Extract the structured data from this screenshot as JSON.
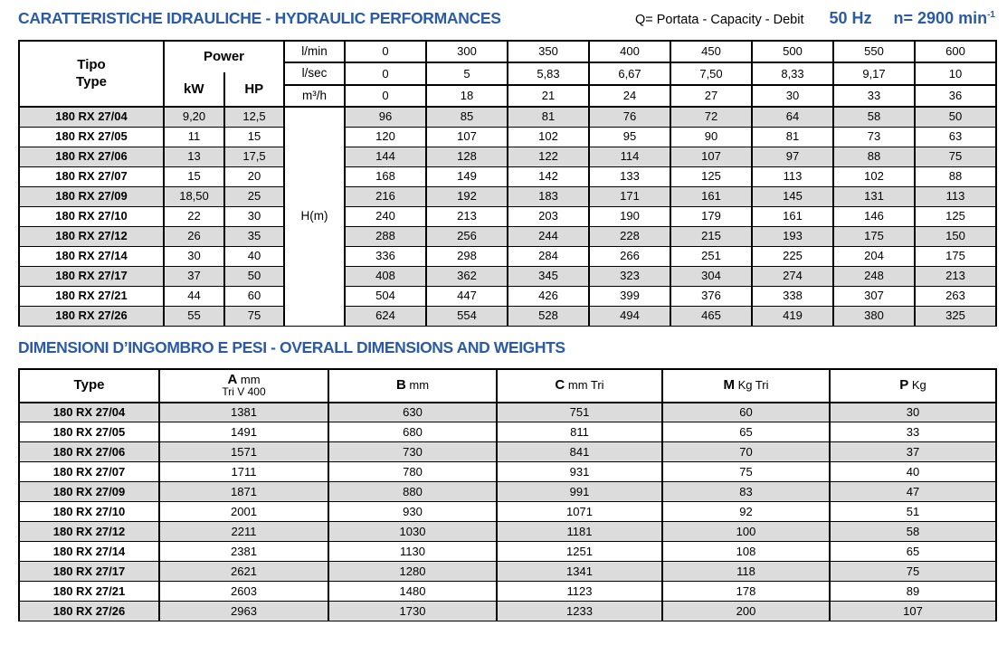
{
  "header": {
    "title": "CARATTERISTICHE IDRAULICHE - HYDRAULIC PERFORMANCES",
    "flow_legend": "Q= Portata - Capacity - Debit",
    "frequency": "50 Hz",
    "speed": "n= 2900 min",
    "speed_exponent": "-1"
  },
  "hydraulic": {
    "tipo_label": "Tipo",
    "type_label": "Type",
    "power_label": "Power",
    "kw_label": "kW",
    "hp_label": "HP",
    "head_unit": "H(m)",
    "flow_rows": [
      {
        "unit": "l/min",
        "values": [
          "0",
          "300",
          "350",
          "400",
          "450",
          "500",
          "550",
          "600"
        ]
      },
      {
        "unit": "l/sec",
        "values": [
          "0",
          "5",
          "5,83",
          "6,67",
          "7,50",
          "8,33",
          "9,17",
          "10"
        ]
      },
      {
        "unit": "m³/h",
        "values": [
          "0",
          "18",
          "21",
          "24",
          "27",
          "30",
          "33",
          "36"
        ]
      }
    ],
    "rows": [
      {
        "type": "180 RX 27/04",
        "kw": "9,20",
        "hp": "12,5",
        "h": [
          "96",
          "85",
          "81",
          "76",
          "72",
          "64",
          "58",
          "50"
        ]
      },
      {
        "type": "180 RX 27/05",
        "kw": "11",
        "hp": "15",
        "h": [
          "120",
          "107",
          "102",
          "95",
          "90",
          "81",
          "73",
          "63"
        ]
      },
      {
        "type": "180 RX 27/06",
        "kw": "13",
        "hp": "17,5",
        "h": [
          "144",
          "128",
          "122",
          "114",
          "107",
          "97",
          "88",
          "75"
        ]
      },
      {
        "type": "180 RX 27/07",
        "kw": "15",
        "hp": "20",
        "h": [
          "168",
          "149",
          "142",
          "133",
          "125",
          "113",
          "102",
          "88"
        ]
      },
      {
        "type": "180 RX 27/09",
        "kw": "18,50",
        "hp": "25",
        "h": [
          "216",
          "192",
          "183",
          "171",
          "161",
          "145",
          "131",
          "113"
        ]
      },
      {
        "type": "180 RX 27/10",
        "kw": "22",
        "hp": "30",
        "h": [
          "240",
          "213",
          "203",
          "190",
          "179",
          "161",
          "146",
          "125"
        ]
      },
      {
        "type": "180 RX 27/12",
        "kw": "26",
        "hp": "35",
        "h": [
          "288",
          "256",
          "244",
          "228",
          "215",
          "193",
          "175",
          "150"
        ]
      },
      {
        "type": "180 RX 27/14",
        "kw": "30",
        "hp": "40",
        "h": [
          "336",
          "298",
          "284",
          "266",
          "251",
          "225",
          "204",
          "175"
        ]
      },
      {
        "type": "180 RX 27/17",
        "kw": "37",
        "hp": "50",
        "h": [
          "408",
          "362",
          "345",
          "323",
          "304",
          "274",
          "248",
          "213"
        ]
      },
      {
        "type": "180 RX 27/21",
        "kw": "44",
        "hp": "60",
        "h": [
          "504",
          "447",
          "426",
          "399",
          "376",
          "338",
          "307",
          "263"
        ]
      },
      {
        "type": "180 RX 27/26",
        "kw": "55",
        "hp": "75",
        "h": [
          "624",
          "554",
          "528",
          "494",
          "465",
          "419",
          "380",
          "325"
        ]
      }
    ]
  },
  "dimensions": {
    "title": "DIMENSIONI D’INGOMBRO E PESI - OVERALL DIMENSIONS AND WEIGHTS",
    "columns": [
      {
        "bold": "Type",
        "rest": "",
        "line2": ""
      },
      {
        "bold": "A",
        "rest": " mm",
        "line2": "Tri V 400"
      },
      {
        "bold": "B",
        "rest": " mm",
        "line2": ""
      },
      {
        "bold": "C",
        "rest": " mm Tri",
        "line2": ""
      },
      {
        "bold": "M",
        "rest": " Kg Tri",
        "line2": ""
      },
      {
        "bold": "P",
        "rest": " Kg",
        "line2": ""
      }
    ],
    "rows": [
      {
        "type": "180 RX 27/04",
        "values": [
          "1381",
          "630",
          "751",
          "60",
          "30"
        ]
      },
      {
        "type": "180 RX 27/05",
        "values": [
          "1491",
          "680",
          "811",
          "65",
          "33"
        ]
      },
      {
        "type": "180 RX 27/06",
        "values": [
          "1571",
          "730",
          "841",
          "70",
          "37"
        ]
      },
      {
        "type": "180 RX 27/07",
        "values": [
          "1711",
          "780",
          "931",
          "75",
          "40"
        ]
      },
      {
        "type": "180 RX 27/09",
        "values": [
          "1871",
          "880",
          "991",
          "83",
          "47"
        ]
      },
      {
        "type": "180 RX 27/10",
        "values": [
          "2001",
          "930",
          "1071",
          "92",
          "51"
        ]
      },
      {
        "type": "180 RX 27/12",
        "values": [
          "2211",
          "1030",
          "1181",
          "100",
          "58"
        ]
      },
      {
        "type": "180 RX 27/14",
        "values": [
          "2381",
          "1130",
          "1251",
          "108",
          "65"
        ]
      },
      {
        "type": "180 RX 27/17",
        "values": [
          "2621",
          "1280",
          "1341",
          "118",
          "75"
        ]
      },
      {
        "type": "180 RX 27/21",
        "values": [
          "2603",
          "1480",
          "1123",
          "178",
          "89"
        ]
      },
      {
        "type": "180 RX 27/26",
        "values": [
          "2963",
          "1730",
          "1233",
          "200",
          "107"
        ]
      }
    ]
  },
  "colors": {
    "accent_blue": "#2b5aa6",
    "row_gray": "#dcdcdc",
    "border_black": "#000000"
  }
}
